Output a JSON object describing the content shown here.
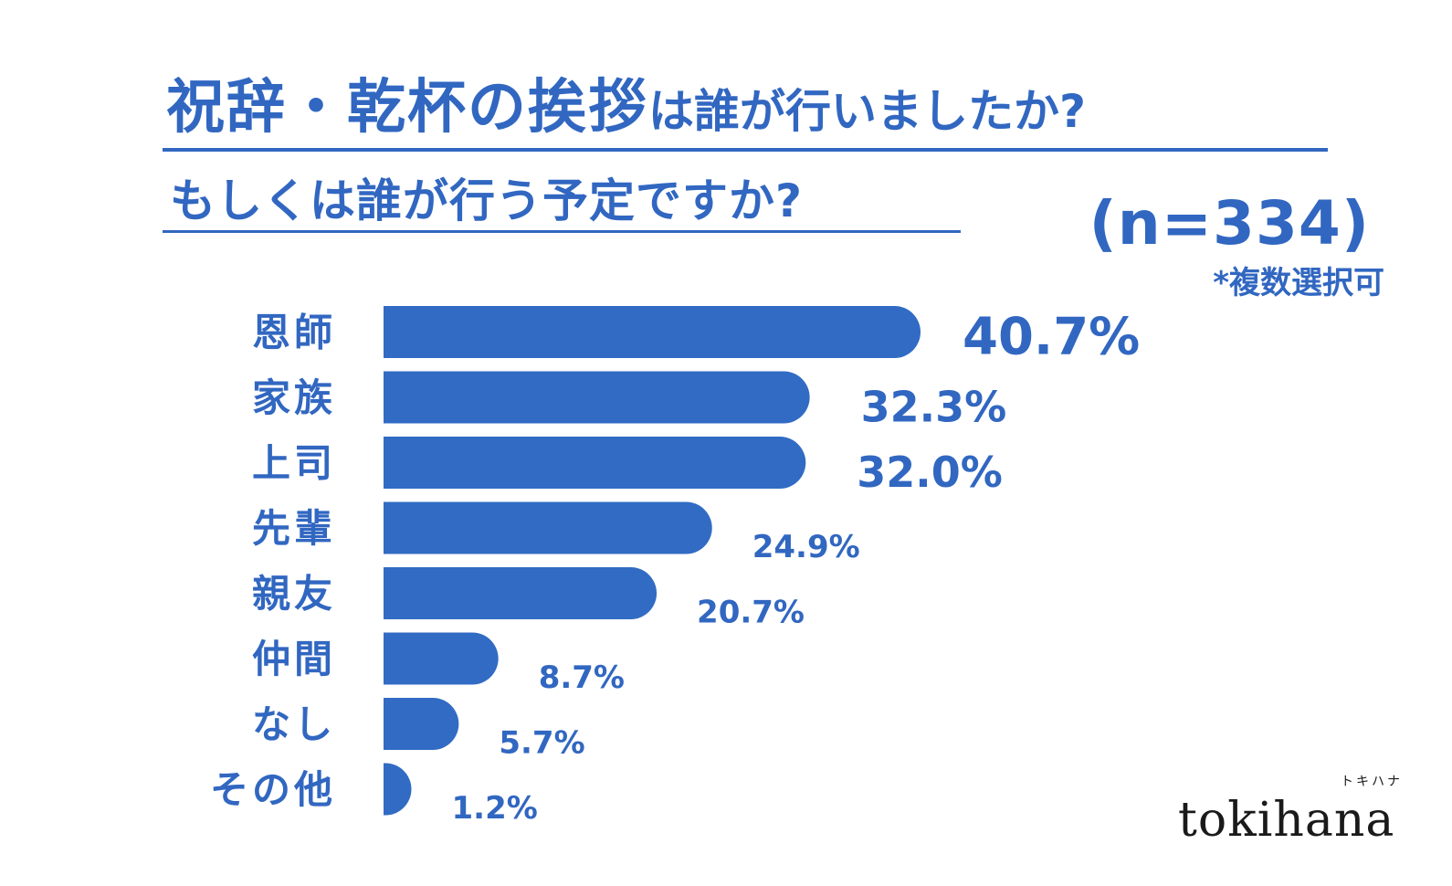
{
  "title": {
    "line1_big": "祝辞・乾杯の挨拶",
    "line1_small": "は誰が行いましたか?",
    "line2": "もしくは誰が行う予定ですか?"
  },
  "sample": "(n=334)",
  "note": "*複数選択可",
  "brand": {
    "name": "tokihana",
    "kana": "トキハナ"
  },
  "colors": {
    "accent": "#3167c1",
    "bar": "#316bc4"
  },
  "chart_data": {
    "type": "bar",
    "orientation": "horizontal",
    "categories": [
      "恩師",
      "家族",
      "上司",
      "先輩",
      "親友",
      "仲間",
      "なし",
      "その他"
    ],
    "values": [
      40.7,
      32.3,
      32.0,
      24.9,
      20.7,
      8.7,
      5.7,
      1.2
    ],
    "value_labels": [
      "40.7%",
      "32.3%",
      "32.0%",
      "24.9%",
      "20.7%",
      "8.7%",
      "5.7%",
      "1.2%"
    ],
    "unit": "%",
    "title": "祝辞・乾杯の挨拶は誰が行いましたか? もしくは誰が行う予定ですか?",
    "xlabel": "",
    "ylabel": "",
    "xlim": [
      0,
      40.7
    ],
    "grid": false,
    "legend": "none"
  }
}
